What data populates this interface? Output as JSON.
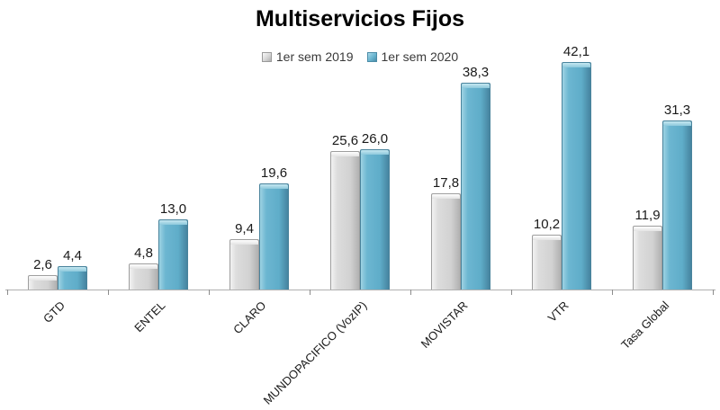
{
  "title": "Multiservicios Fijos",
  "colors": {
    "series_2019": "#d6d6d6",
    "series_2020": "#69b4cf",
    "axis": "#b0b0b0",
    "text": "#1a1a1a",
    "background": "#ffffff"
  },
  "legend": {
    "position": "top-center",
    "items": [
      {
        "label": "1er sem 2019",
        "color": "#d6d6d6"
      },
      {
        "label": "1er sem 2020",
        "color": "#69b4cf"
      }
    ]
  },
  "chart_data": {
    "type": "bar",
    "title": "Multiservicios Fijos",
    "xlabel": "",
    "ylabel": "",
    "ylim": [
      0,
      45
    ],
    "grid": false,
    "legend_position": "top",
    "decimal_separator": ",",
    "categories": [
      "GTD",
      "ENTEL",
      "CLARO",
      "MUNDOPACIFICO (VozIP)",
      "MOVISTAR",
      "VTR",
      "Tasa Global"
    ],
    "series": [
      {
        "name": "1er sem 2019",
        "color": "#d6d6d6",
        "values": [
          2.6,
          4.8,
          9.4,
          25.6,
          17.8,
          10.2,
          11.9
        ],
        "labels": [
          "2,6",
          "4,8",
          "9,4",
          "25,6",
          "17,8",
          "10,2",
          "11,9"
        ]
      },
      {
        "name": "1er sem 2020",
        "color": "#69b4cf",
        "values": [
          4.4,
          13.0,
          19.6,
          26.0,
          38.3,
          42.1,
          31.3
        ],
        "labels": [
          "4,4",
          "13,0",
          "19,6",
          "26,0",
          "38,3",
          "42,1",
          "31,3"
        ]
      }
    ]
  }
}
